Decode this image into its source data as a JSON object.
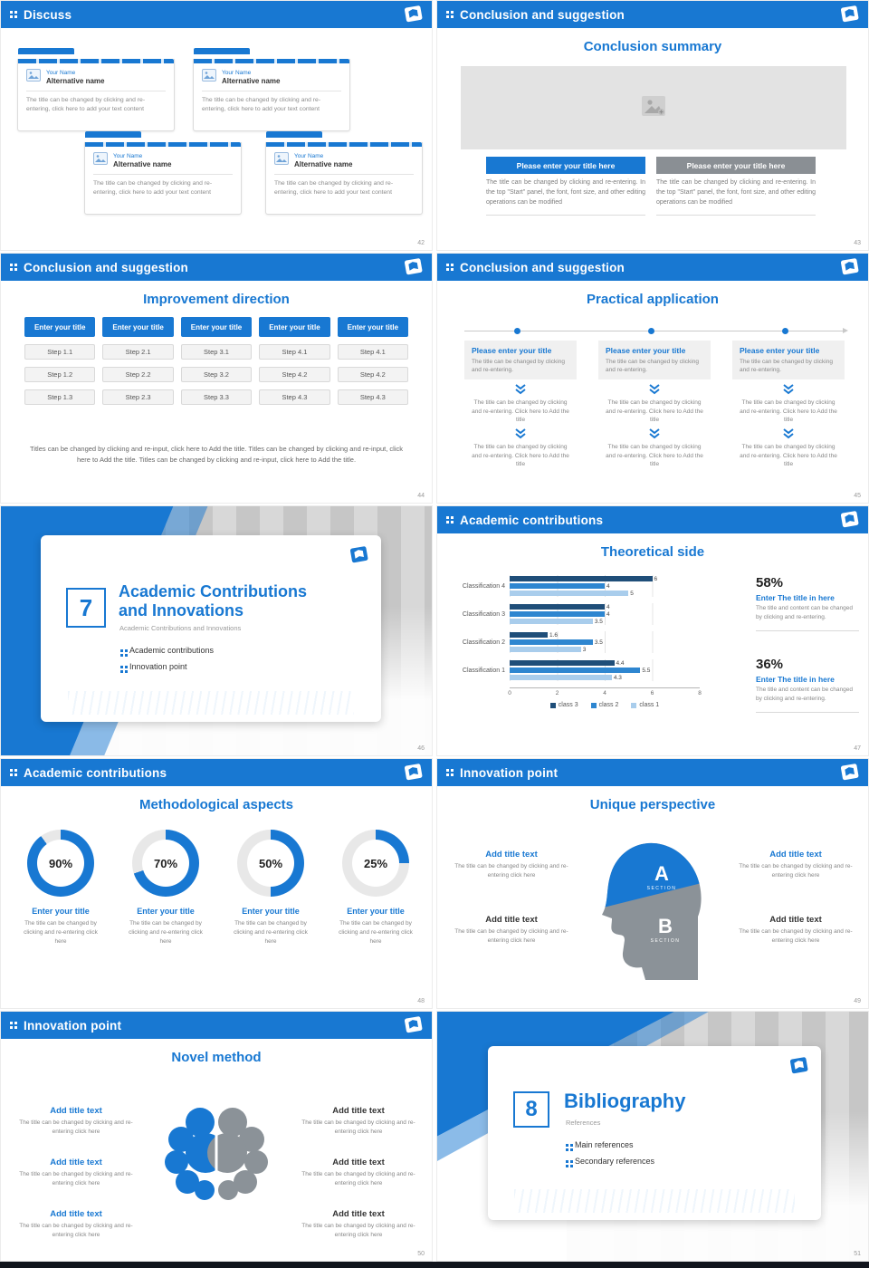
{
  "accent": "#1878d2",
  "donut_track": "#e8e8e8",
  "footer_bar_color": "#10141c",
  "slides": {
    "discuss": {
      "header": "Discuss",
      "page": "42",
      "cards": [
        {
          "name": "Your Name",
          "alt": "Alternative name",
          "text": "The title can be changed by clicking and re-entering, click here to add your text content"
        },
        {
          "name": "Your Name",
          "alt": "Alternative name",
          "text": "The title can be changed by clicking and re-entering, click here to add your text content"
        },
        {
          "name": "Your Name",
          "alt": "Alternative name",
          "text": "The title can be changed by clicking and re-entering, click here to add your text content"
        },
        {
          "name": "Your Name",
          "alt": "Alternative name",
          "text": "The title can be changed by clicking and re-entering, click here to add your text content"
        }
      ]
    },
    "summary": {
      "header": "Conclusion and suggestion",
      "title": "Conclusion summary",
      "page": "43",
      "items": [
        {
          "button": "Please enter your title here",
          "text": "The title can be changed by clicking and re-entering. In the top \"Start\" panel, the font, font size, and other editing operations can be modified"
        },
        {
          "button": "Please enter your title here",
          "text": "The title can be changed by clicking and re-entering. In the top \"Start\" panel, the font, font size, and other editing operations can be modified"
        }
      ]
    },
    "improvement": {
      "header": "Conclusion and suggestion",
      "title": "Improvement direction",
      "page": "44",
      "button_label": "Enter your title",
      "columns": [
        {
          "steps": [
            "Step 1.1",
            "Step 1.2",
            "Step 1.3"
          ]
        },
        {
          "steps": [
            "Step 2.1",
            "Step 2.2",
            "Step 2.3"
          ]
        },
        {
          "steps": [
            "Step 3.1",
            "Step 3.2",
            "Step 3.3"
          ]
        },
        {
          "steps": [
            "Step 4.1",
            "Step 4.2",
            "Step 4.3"
          ]
        },
        {
          "steps": [
            "Step 4.1",
            "Step 4.2",
            "Step 4.3"
          ]
        }
      ],
      "footer": "Titles can be changed by clicking and re-input, click here to Add the title. Titles can be changed by clicking and re-input, click here to Add the title. Titles can be changed by clicking and re-input, click here to Add the title."
    },
    "practical": {
      "header": "Conclusion and suggestion",
      "title": "Practical application",
      "page": "45",
      "columns": [
        {
          "title": "Please enter your title",
          "box_text": "The title can be changed by clicking and re-entering.",
          "text1": "The title can be changed by clicking and re-entering. Click here to Add the title",
          "text2": "The title can be changed by clicking and re-entering. Click here to Add the title"
        },
        {
          "title": "Please enter your title",
          "box_text": "The title can be changed by clicking and re-entering.",
          "text1": "The title can be changed by clicking and re-entering. Click here to Add the title",
          "text2": "The title can be changed by clicking and re-entering. Click here to Add the title"
        },
        {
          "title": "Please enter your title",
          "box_text": "The title can be changed by clicking and re-entering.",
          "text1": "The title can be changed by clicking and re-entering. Click here to Add the title",
          "text2": "The title can be changed by clicking and re-entering. Click here to Add the title"
        }
      ]
    },
    "section7": {
      "number": "7",
      "title_line1": "Academic Contributions",
      "title_line2": "and Innovations",
      "subtitle": "Academic Contributions and Innovations",
      "items": [
        "Academic contributions",
        "Innovation point"
      ],
      "page": "46"
    },
    "theoretical": {
      "header": "Academic contributions",
      "title": "Theoretical side",
      "page": "47",
      "stats": [
        {
          "pct": "58%",
          "title": "Enter The title in here",
          "text": "The title and content can be changed by clicking and re-entering."
        },
        {
          "pct": "36%",
          "title": "Enter The title in here",
          "text": "The title and content can be changed by clicking and re-entering."
        }
      ]
    },
    "methodological": {
      "header": "Academic contributions",
      "title": "Methodological aspects",
      "page": "48",
      "donuts": [
        {
          "pct": 90,
          "label": "90%",
          "title": "Enter your title",
          "text": "The title can be changed by clicking and re-entering click here"
        },
        {
          "pct": 70,
          "label": "70%",
          "title": "Enter your title",
          "text": "The title can be changed by clicking and re-entering click here"
        },
        {
          "pct": 50,
          "label": "50%",
          "title": "Enter your title",
          "text": "The title can be changed by clicking and re-entering click here"
        },
        {
          "pct": 25,
          "label": "25%",
          "title": "Enter your title",
          "text": "The title can be changed by clicking and re-entering click here"
        }
      ]
    },
    "unique": {
      "header": "Innovation point",
      "title": "Unique perspective",
      "page": "49",
      "section_a": "A",
      "section_a_label": "SECTION",
      "section_b": "B",
      "section_b_label": "SECTION",
      "blocks": [
        {
          "title": "Add title text",
          "text": "The title can be changed by clicking and re-entering click here"
        },
        {
          "title": "Add title text",
          "text": "The title can be changed by clicking and re-entering click here"
        },
        {
          "title": "Add title text",
          "text": "The title can be changed by clicking and re-entering click here"
        },
        {
          "title": "Add title text",
          "text": "The title can be changed by clicking and re-entering click here"
        }
      ]
    },
    "novel": {
      "header": "Innovation point",
      "title": "Novel method",
      "page": "50",
      "blocks": [
        {
          "title": "Add title text",
          "text": "The title can be changed by clicking and re-entering click here"
        },
        {
          "title": "Add title text",
          "text": "The title can be changed by clicking and re-entering click here"
        },
        {
          "title": "Add title text",
          "text": "The title can be changed by clicking and re-entering click here"
        },
        {
          "title": "Add title text",
          "text": "The title can be changed by clicking and re-entering click here"
        },
        {
          "title": "Add title text",
          "text": "The title can be changed by clicking and re-entering click here"
        },
        {
          "title": "Add title text",
          "text": "The title can be changed by clicking and re-entering click here"
        }
      ]
    },
    "section8": {
      "number": "8",
      "title": "Bibliography",
      "subtitle": "References",
      "items": [
        "Main references",
        "Secondary references"
      ],
      "page": "51"
    }
  },
  "chart_data": {
    "type": "bar",
    "orientation": "horizontal",
    "title": "Theoretical side",
    "categories": [
      "Classification 1",
      "Classification 2",
      "Classification 3",
      "Classification 4"
    ],
    "series": [
      {
        "name": "class 3",
        "color": "#1f4e79",
        "values": [
          4.4,
          1.6,
          4,
          6
        ]
      },
      {
        "name": "class 2",
        "color": "#2e86d0",
        "values": [
          5.5,
          3.5,
          4,
          4
        ]
      },
      {
        "name": "class 1",
        "color": "#a9cdec",
        "values": [
          4.3,
          3,
          3.5,
          5
        ]
      }
    ],
    "xlabel": "",
    "ylabel": "",
    "xlim": [
      0,
      8
    ],
    "xticks": [
      0,
      2,
      4,
      6,
      8
    ],
    "grid": true,
    "legend_position": "bottom"
  }
}
